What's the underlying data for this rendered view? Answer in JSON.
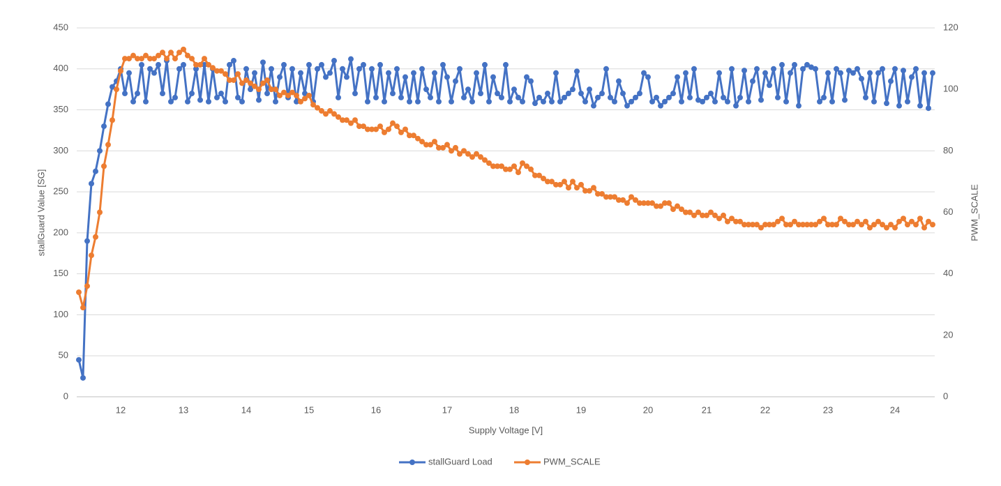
{
  "chart_data": {
    "type": "line",
    "x_label": "Supply Voltage [V]",
    "y_label": "stallGuard Value [SG]",
    "y2_label": "PWM_SCALE",
    "categories": [
      null,
      null,
      null,
      null,
      null,
      null,
      null,
      null,
      null,
      null,
      "12",
      null,
      null,
      null,
      null,
      null,
      null,
      null,
      null,
      null,
      null,
      null,
      null,
      null,
      null,
      "13",
      null,
      null,
      null,
      null,
      null,
      null,
      null,
      null,
      null,
      null,
      null,
      null,
      null,
      null,
      "14",
      null,
      null,
      null,
      null,
      null,
      null,
      null,
      null,
      null,
      null,
      null,
      null,
      null,
      null,
      "15",
      null,
      null,
      null,
      null,
      null,
      null,
      null,
      null,
      null,
      null,
      null,
      null,
      null,
      null,
      null,
      "16",
      null,
      null,
      null,
      null,
      null,
      null,
      null,
      null,
      null,
      null,
      null,
      null,
      null,
      null,
      null,
      null,
      "17",
      null,
      null,
      null,
      null,
      null,
      null,
      null,
      null,
      null,
      null,
      null,
      null,
      null,
      null,
      null,
      "18",
      null,
      null,
      null,
      null,
      null,
      null,
      null,
      null,
      null,
      null,
      null,
      null,
      null,
      null,
      null,
      "19",
      null,
      null,
      null,
      null,
      null,
      null,
      null,
      null,
      null,
      null,
      null,
      null,
      null,
      null,
      null,
      "20",
      null,
      null,
      null,
      null,
      null,
      null,
      null,
      null,
      null,
      null,
      null,
      null,
      null,
      "21",
      null,
      null,
      null,
      null,
      null,
      null,
      null,
      null,
      null,
      null,
      null,
      null,
      null,
      "22",
      null,
      null,
      null,
      null,
      null,
      null,
      null,
      null,
      null,
      null,
      null,
      null,
      null,
      null,
      "23",
      null,
      null,
      null,
      null,
      null,
      null,
      null,
      null,
      null,
      null,
      null,
      null,
      null,
      null,
      null,
      "24",
      null,
      null,
      null,
      null,
      null,
      null,
      null,
      null,
      null
    ],
    "series": [
      {
        "name": "stallGuard Load",
        "color": "#4472c4",
        "values": [
          45,
          23,
          190,
          260,
          275,
          300,
          330,
          357,
          378,
          385,
          400,
          370,
          395,
          360,
          370,
          405,
          360,
          400,
          395,
          405,
          370,
          410,
          360,
          365,
          400,
          405,
          360,
          370,
          400,
          362,
          405,
          360,
          400,
          365,
          370,
          360,
          405,
          410,
          365,
          360,
          400,
          375,
          395,
          362,
          408,
          370,
          400,
          360,
          390,
          405,
          365,
          400,
          360,
          395,
          370,
          405,
          360,
          400,
          405,
          390,
          395,
          410,
          365,
          400,
          390,
          412,
          370,
          400,
          405,
          360,
          400,
          365,
          405,
          360,
          395,
          370,
          400,
          365,
          390,
          360,
          395,
          360,
          400,
          375,
          365,
          395,
          360,
          405,
          390,
          360,
          385,
          400,
          365,
          375,
          360,
          395,
          370,
          405,
          360,
          390,
          370,
          365,
          405,
          360,
          375,
          365,
          360,
          390,
          385,
          358,
          365,
          360,
          370,
          360,
          395,
          360,
          365,
          370,
          375,
          397,
          370,
          360,
          375,
          355,
          365,
          370,
          400,
          365,
          360,
          385,
          370,
          355,
          360,
          365,
          370,
          395,
          390,
          360,
          365,
          355,
          360,
          365,
          370,
          390,
          360,
          395,
          365,
          400,
          362,
          360,
          365,
          370,
          360,
          395,
          365,
          360,
          400,
          355,
          365,
          398,
          360,
          385,
          400,
          362,
          395,
          380,
          400,
          365,
          405,
          360,
          395,
          405,
          355,
          400,
          405,
          402,
          400,
          360,
          365,
          395,
          360,
          400,
          395,
          362,
          398,
          395,
          400,
          388,
          365,
          395,
          360,
          395,
          400,
          358,
          385,
          400,
          355,
          398,
          360,
          390,
          400,
          355,
          395,
          352,
          395
        ]
      },
      {
        "name": "PWM_SCALE",
        "color": "#ed7d31",
        "axis": "y2",
        "values": [
          34,
          29,
          36,
          46,
          52,
          60,
          75,
          82,
          90,
          100,
          106,
          110,
          110,
          111,
          110,
          110,
          111,
          110,
          110,
          111,
          112,
          110,
          112,
          110,
          112,
          113,
          111,
          110,
          108,
          108,
          110,
          108,
          107,
          106,
          106,
          105,
          103,
          103,
          105,
          102,
          103,
          102,
          101,
          100,
          102,
          103,
          100,
          100,
          98,
          99,
          98,
          99,
          98,
          96,
          97,
          98,
          95,
          94,
          93,
          92,
          93,
          92,
          91,
          90,
          90,
          89,
          90,
          88,
          88,
          87,
          87,
          87,
          88,
          86,
          87,
          89,
          88,
          86,
          87,
          85,
          85,
          84,
          83,
          82,
          82,
          83,
          81,
          81,
          82,
          80,
          81,
          79,
          80,
          79,
          78,
          79,
          78,
          77,
          76,
          75,
          75,
          75,
          74,
          74,
          75,
          73,
          76,
          75,
          74,
          72,
          72,
          71,
          70,
          70,
          69,
          69,
          70,
          68,
          70,
          68,
          69,
          67,
          67,
          68,
          66,
          66,
          65,
          65,
          65,
          64,
          64,
          63,
          65,
          64,
          63,
          63,
          63,
          63,
          62,
          62,
          63,
          63,
          61,
          62,
          61,
          60,
          60,
          59,
          60,
          59,
          59,
          60,
          59,
          58,
          59,
          57,
          58,
          57,
          57,
          56,
          56,
          56,
          56,
          55,
          56,
          56,
          56,
          57,
          58,
          56,
          56,
          57,
          56,
          56,
          56,
          56,
          56,
          57,
          58,
          56,
          56,
          56,
          58,
          57,
          56,
          56,
          57,
          56,
          57,
          55,
          56,
          57,
          56,
          55,
          56,
          55,
          57,
          58,
          56,
          57,
          56,
          58,
          55,
          57,
          56
        ]
      }
    ],
    "ylim": [
      0,
      450
    ],
    "yticks": [
      0,
      50,
      100,
      150,
      200,
      250,
      300,
      350,
      400,
      450
    ],
    "y2lim": [
      0,
      120
    ],
    "y2ticks": [
      0,
      20,
      40,
      60,
      80,
      100,
      120
    ],
    "grid": true,
    "legend": "bottom"
  }
}
